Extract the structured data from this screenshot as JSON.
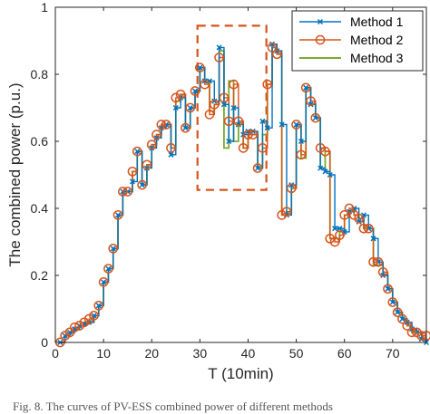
{
  "chart_data": {
    "type": "line",
    "title": "",
    "xlabel": "T (10min)",
    "ylabel": "The combined power (p.u.)",
    "xlim": [
      0,
      77
    ],
    "ylim": [
      0,
      1
    ],
    "xticks": [
      "0",
      "10",
      "20",
      "30",
      "40",
      "50",
      "60",
      "70"
    ],
    "yticks": [
      "0",
      "0.2",
      "0.4",
      "0.6",
      "0.8",
      "1"
    ],
    "grid": false,
    "legend_position": "top-right",
    "highlight_box": {
      "x": [
        29.5,
        43.8
      ],
      "y": [
        0.455,
        0.945
      ],
      "color": "#D95319",
      "style": "dashed"
    },
    "x": [
      1,
      2,
      3,
      4,
      5,
      6,
      7,
      8,
      9,
      10,
      11,
      12,
      13,
      14,
      15,
      16,
      17,
      18,
      19,
      20,
      21,
      22,
      23,
      24,
      25,
      26,
      27,
      28,
      29,
      30,
      31,
      32,
      33,
      34,
      35,
      36,
      37,
      38,
      39,
      40,
      41,
      42,
      43,
      44,
      45,
      46,
      47,
      48,
      49,
      50,
      51,
      52,
      53,
      54,
      55,
      56,
      57,
      58,
      59,
      60,
      61,
      62,
      63,
      64,
      65,
      66,
      67,
      68,
      69,
      70,
      71,
      72,
      73,
      74,
      75,
      76,
      77
    ],
    "series": [
      {
        "name": "Method 1",
        "color": "#0072BD",
        "marker": "x",
        "values": [
          0.0,
          0.02,
          0.03,
          0.04,
          0.05,
          0.055,
          0.06,
          0.08,
          0.11,
          0.18,
          0.22,
          0.28,
          0.38,
          0.45,
          0.45,
          0.48,
          0.57,
          0.47,
          0.52,
          0.58,
          0.61,
          0.64,
          0.65,
          0.56,
          0.7,
          0.73,
          0.64,
          0.7,
          0.75,
          0.82,
          0.78,
          0.78,
          0.72,
          0.88,
          0.71,
          0.6,
          0.7,
          0.65,
          0.62,
          0.63,
          0.63,
          0.52,
          0.66,
          0.64,
          0.89,
          0.87,
          0.65,
          0.38,
          0.47,
          0.65,
          0.6,
          0.76,
          0.71,
          0.67,
          0.52,
          0.51,
          0.5,
          0.34,
          0.34,
          0.33,
          0.39,
          0.4,
          0.36,
          0.38,
          0.34,
          0.31,
          0.24,
          0.2,
          0.16,
          0.12,
          0.09,
          0.07,
          0.06,
          0.04,
          0.03,
          0.01,
          0.0
        ]
      },
      {
        "name": "Method 2",
        "color": "#D95319",
        "marker": "o",
        "values": [
          0.0,
          0.02,
          0.03,
          0.045,
          0.05,
          0.06,
          0.07,
          0.08,
          0.11,
          0.18,
          0.22,
          0.28,
          0.38,
          0.45,
          0.45,
          0.51,
          0.57,
          0.47,
          0.53,
          0.59,
          0.62,
          0.65,
          0.65,
          0.58,
          0.73,
          0.74,
          0.64,
          0.7,
          0.75,
          0.82,
          0.77,
          0.68,
          0.71,
          0.85,
          0.73,
          0.66,
          0.77,
          0.66,
          0.58,
          0.62,
          0.62,
          0.52,
          0.58,
          0.77,
          0.88,
          0.86,
          0.38,
          0.39,
          0.46,
          0.65,
          0.56,
          0.76,
          0.72,
          0.67,
          0.58,
          0.57,
          0.31,
          0.3,
          0.32,
          0.38,
          0.4,
          0.38,
          0.37,
          0.34,
          0.34,
          0.24,
          0.24,
          0.21,
          0.16,
          0.12,
          0.09,
          0.07,
          0.05,
          0.03,
          0.03,
          0.02,
          0.02
        ]
      },
      {
        "name": "Method 3",
        "color": "#77AC30",
        "marker": "",
        "values": [
          0.0,
          0.02,
          0.03,
          0.04,
          0.05,
          0.06,
          0.06,
          0.08,
          0.11,
          0.18,
          0.22,
          0.28,
          0.38,
          0.45,
          0.45,
          0.51,
          0.57,
          0.47,
          0.53,
          0.59,
          0.62,
          0.65,
          0.65,
          0.58,
          0.72,
          0.74,
          0.64,
          0.7,
          0.75,
          0.82,
          0.78,
          0.69,
          0.71,
          0.87,
          0.58,
          0.78,
          0.6,
          0.66,
          0.58,
          0.62,
          0.62,
          0.52,
          0.62,
          0.77,
          0.88,
          0.86,
          0.38,
          0.39,
          0.46,
          0.65,
          0.55,
          0.76,
          0.71,
          0.67,
          0.52,
          0.57,
          0.31,
          0.31,
          0.33,
          0.38,
          0.39,
          0.38,
          0.37,
          0.34,
          0.34,
          0.23,
          0.23,
          0.2,
          0.16,
          0.12,
          0.09,
          0.07,
          0.05,
          0.03,
          0.03,
          0.02,
          0.02
        ]
      }
    ]
  },
  "caption": "Fig. 8.  The curves of PV-ESS combined power of different methods"
}
